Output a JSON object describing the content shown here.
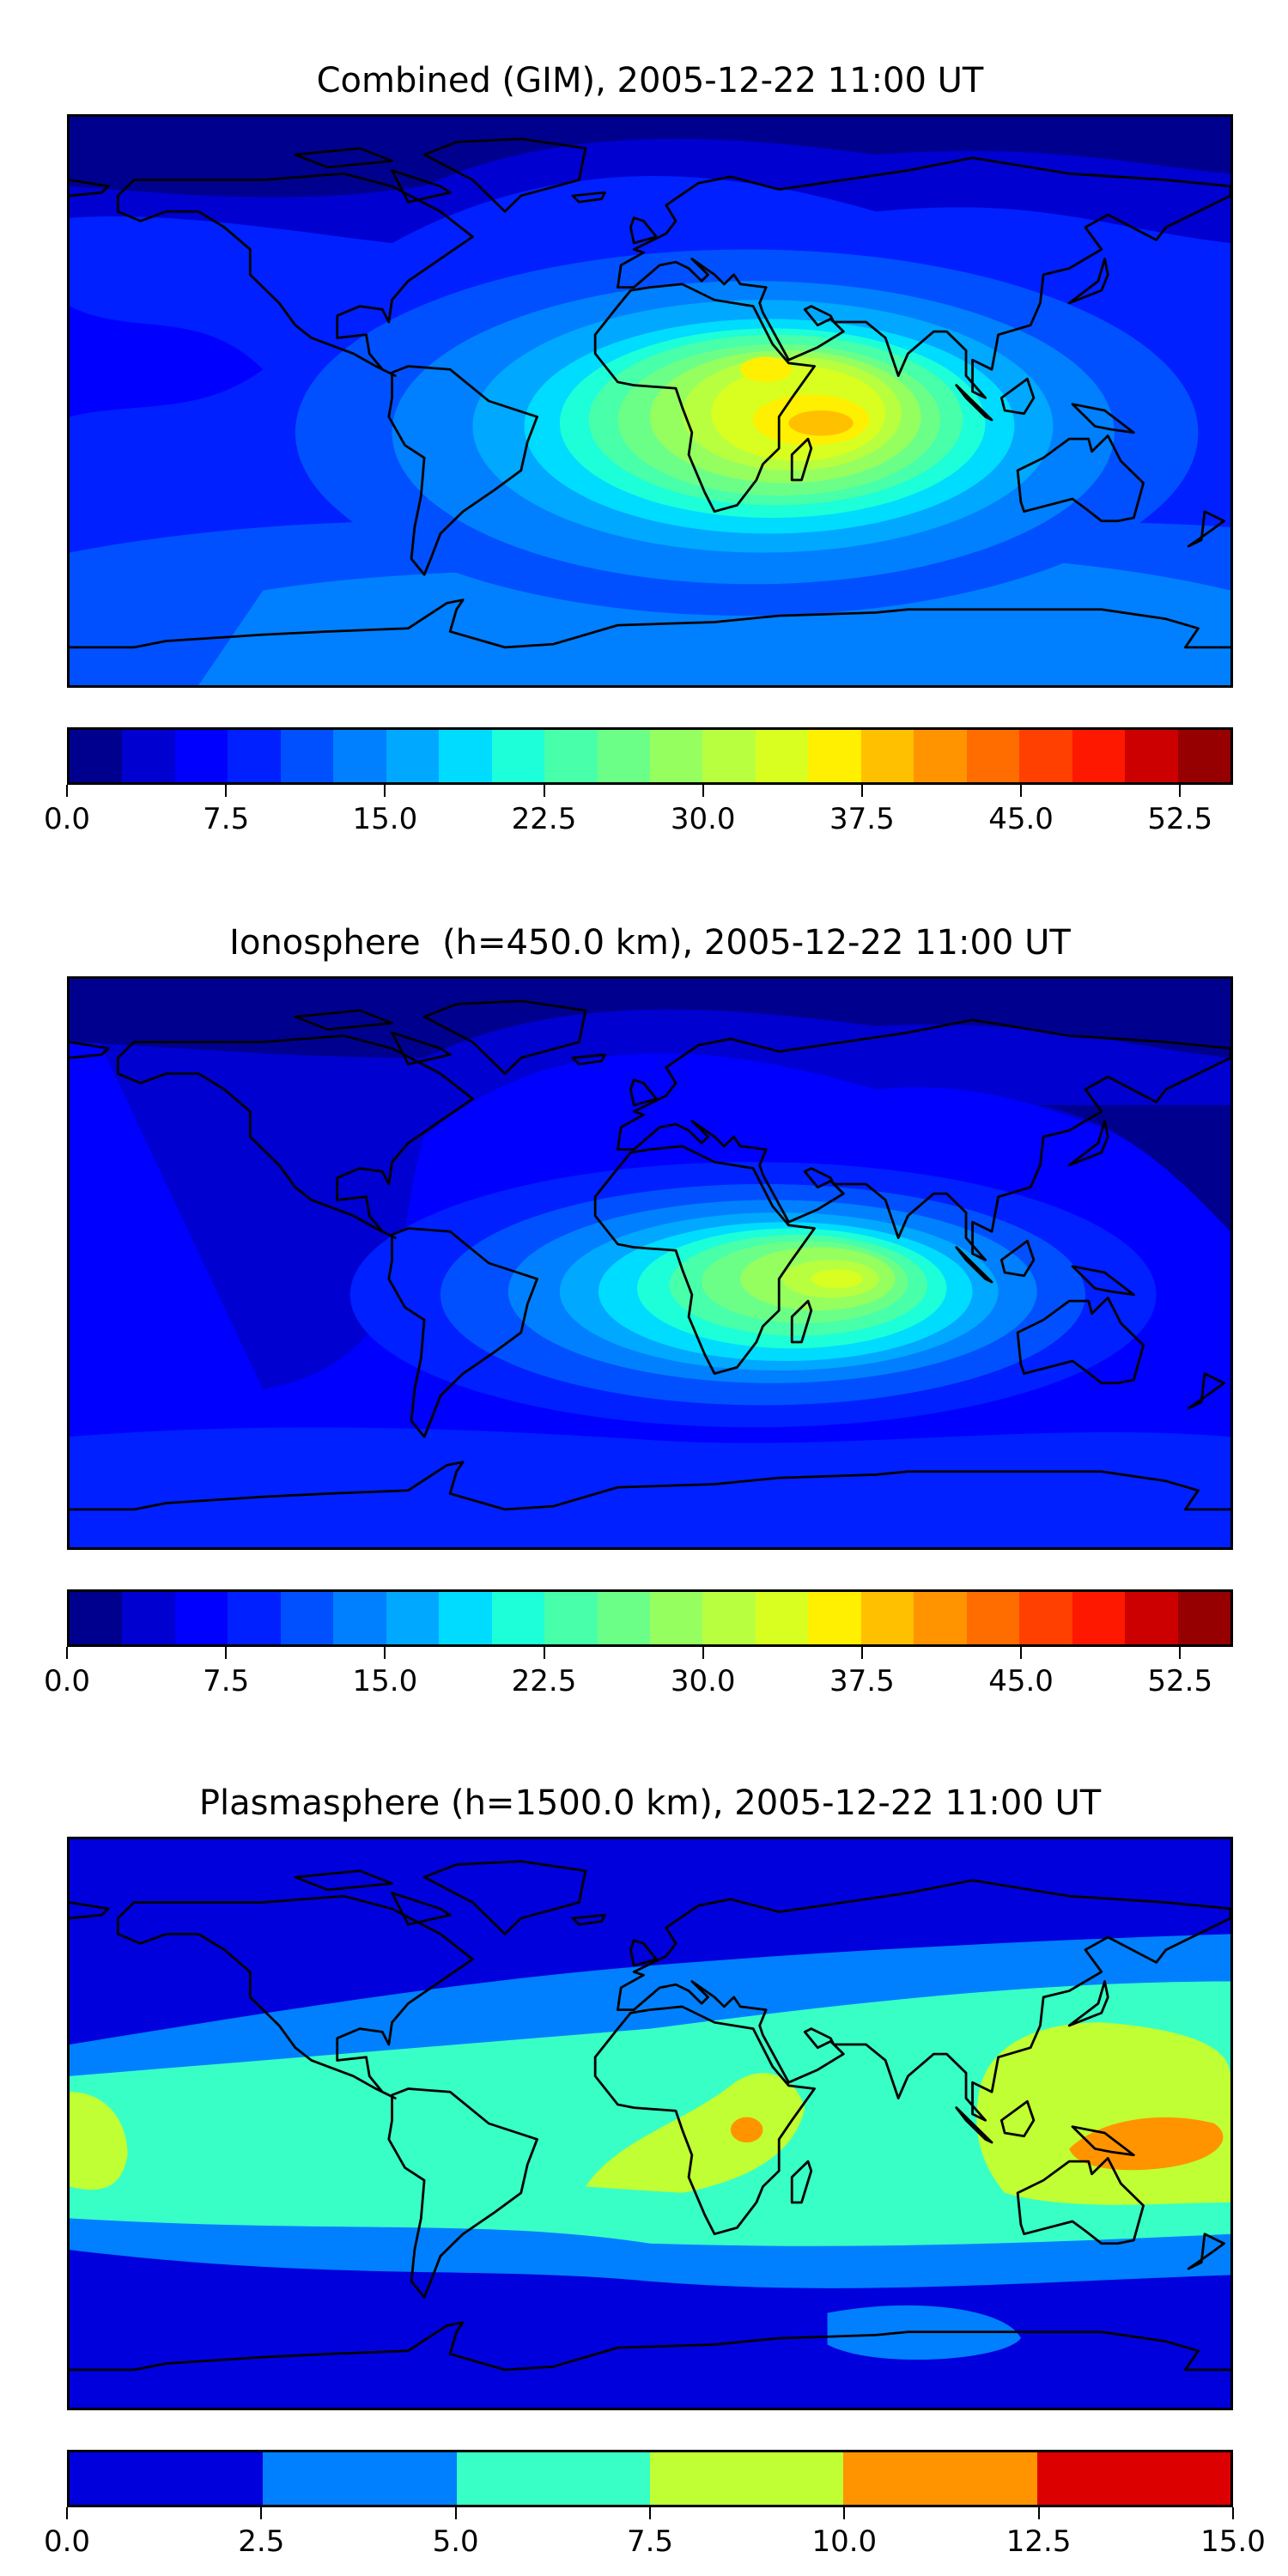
{
  "chart_data": [
    {
      "type": "heatmap",
      "subtype": "filled-contour-map",
      "title": "Combined (GIM), 2005-12-22 11:00 UT",
      "projection": "plate carree, global",
      "colormap": "jet",
      "levels_range": [
        0,
        55
      ],
      "level_step": 2.5,
      "colorbar_ticks": [
        "0.0",
        "7.5",
        "15.0",
        "22.5",
        "30.0",
        "37.5",
        "45.0",
        "52.5"
      ],
      "colorbar_tick_values": [
        0,
        7.5,
        15,
        22.5,
        30,
        37.5,
        45,
        52.5
      ],
      "field_min_approx": 0,
      "field_max_approx": 40,
      "peak_location": "Africa / western Indian Ocean, south of equator"
    },
    {
      "type": "heatmap",
      "subtype": "filled-contour-map",
      "title": "Ionosphere  (h=450.0 km), 2005-12-22 11:00 UT",
      "projection": "plate carree, global",
      "colormap": "jet",
      "levels_range": [
        0,
        55
      ],
      "level_step": 2.5,
      "colorbar_ticks": [
        "0.0",
        "7.5",
        "15.0",
        "22.5",
        "30.0",
        "37.5",
        "45.0",
        "52.5"
      ],
      "colorbar_tick_values": [
        0,
        7.5,
        15,
        22.5,
        30,
        37.5,
        45,
        52.5
      ],
      "field_min_approx": 0,
      "field_max_approx": 35,
      "peak_location": "Western Indian Ocean, east of Madagascar"
    },
    {
      "type": "heatmap",
      "subtype": "filled-contour-map",
      "title": "Plasmasphere (h=1500.0 km), 2005-12-22 11:00 UT",
      "projection": "plate carree, global",
      "colormap": "jet",
      "levels_range": [
        0,
        15
      ],
      "level_step": 2.5,
      "colorbar_ticks": [
        "0.0",
        "2.5",
        "5.0",
        "7.5",
        "10.0",
        "12.5",
        "15.0"
      ],
      "colorbar_tick_values": [
        0,
        2.5,
        5,
        7.5,
        10,
        12.5,
        15
      ],
      "field_min_approx": 0,
      "field_max_approx": 12.5,
      "peak_location": "Central Africa and New Guinea / northern Australia"
    }
  ],
  "colors": {
    "jet22": [
      "#00008f",
      "#0000d0",
      "#0000ff",
      "#0020ff",
      "#0050ff",
      "#0080ff",
      "#00a8ff",
      "#00dcff",
      "#1cffd8",
      "#48ffaa",
      "#6cff88",
      "#95ff60",
      "#b8ff40",
      "#d8ff20",
      "#ffef00",
      "#ffc000",
      "#ff9400",
      "#ff6c00",
      "#ff4000",
      "#ff1800",
      "#cc0000",
      "#960000"
    ],
    "jet6": [
      "#0000dd",
      "#0080ff",
      "#38ffc6",
      "#c0ff33",
      "#ff9400",
      "#dd0000"
    ],
    "coastline": "#000000"
  }
}
